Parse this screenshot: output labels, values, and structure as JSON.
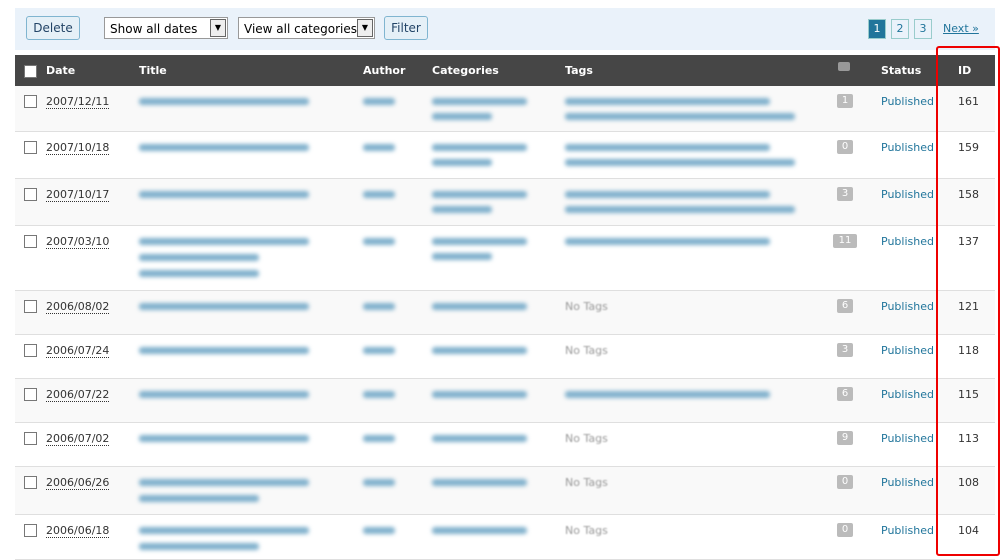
{
  "toolbar": {
    "delete": "Delete",
    "dates": "Show all dates",
    "categories": "View all categories",
    "filter": "Filter",
    "pages": [
      "1",
      "2",
      "3"
    ],
    "next": "Next »"
  },
  "table": {
    "headers": [
      "Date",
      "Title",
      "Author",
      "Categories",
      "Tags",
      "Status",
      "ID"
    ],
    "rows": [
      {
        "date": "2007/12/11",
        "comments": "1",
        "status": "Published",
        "id": "161"
      },
      {
        "date": "2007/10/18",
        "comments": "0",
        "status": "Published",
        "id": "159"
      },
      {
        "date": "2007/10/17",
        "comments": "3",
        "status": "Published",
        "id": "158"
      },
      {
        "date": "2007/03/10",
        "comments": "11",
        "status": "Published",
        "id": "137"
      },
      {
        "date": "2006/08/02",
        "tags": "No Tags",
        "comments": "6",
        "status": "Published",
        "id": "121"
      },
      {
        "date": "2006/07/24",
        "tags": "No Tags",
        "comments": "3",
        "status": "Published",
        "id": "118"
      },
      {
        "date": "2006/07/22",
        "comments": "6",
        "status": "Published",
        "id": "115"
      },
      {
        "date": "2006/07/02",
        "tags": "No Tags",
        "comments": "9",
        "status": "Published",
        "id": "113"
      },
      {
        "date": "2006/06/26",
        "tags": "No Tags",
        "comments": "0",
        "status": "Published",
        "id": "108"
      },
      {
        "date": "2006/06/18",
        "tags": "No Tags",
        "comments": "0",
        "status": "Published",
        "id": "104"
      }
    ]
  }
}
